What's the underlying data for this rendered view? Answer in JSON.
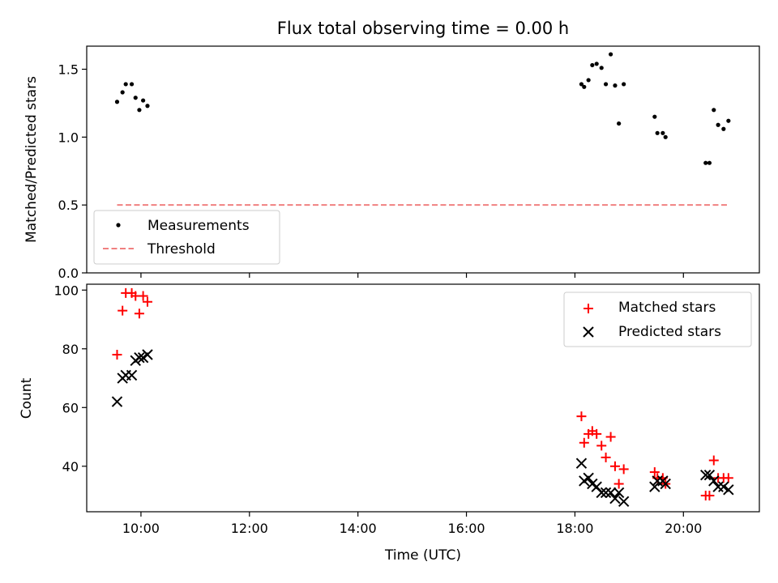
{
  "chart_data": [
    {
      "type": "scatter",
      "title": "Flux total observing time = 0.00 h",
      "xlabel": "",
      "ylabel": "Matched/Predicted stars",
      "ylim": [
        0,
        1.67
      ],
      "yticks": [
        "0.0",
        "0.5",
        "1.0",
        "1.5"
      ],
      "ytick_values": [
        0,
        0.5,
        1.0,
        1.5
      ],
      "xlim": [
        9.0,
        21.4
      ],
      "xticks": [
        10,
        12,
        14,
        16,
        18,
        20
      ],
      "grid": false,
      "legend_position": "lower-left",
      "series": [
        {
          "name": "Measurements",
          "kind": "dot",
          "color": "#000000",
          "points": [
            [
              9.56,
              1.26
            ],
            [
              9.66,
              1.33
            ],
            [
              9.72,
              1.39
            ],
            [
              9.83,
              1.39
            ],
            [
              9.9,
              1.29
            ],
            [
              9.97,
              1.2
            ],
            [
              10.04,
              1.27
            ],
            [
              10.12,
              1.23
            ],
            [
              18.12,
              1.39
            ],
            [
              18.17,
              1.37
            ],
            [
              18.25,
              1.42
            ],
            [
              18.32,
              1.53
            ],
            [
              18.4,
              1.54
            ],
            [
              18.49,
              1.51
            ],
            [
              18.57,
              1.39
            ],
            [
              18.66,
              1.61
            ],
            [
              18.74,
              1.38
            ],
            [
              18.81,
              1.1
            ],
            [
              18.9,
              1.39
            ],
            [
              19.47,
              1.15
            ],
            [
              19.52,
              1.03
            ],
            [
              19.62,
              1.03
            ],
            [
              19.67,
              1.0
            ],
            [
              20.41,
              0.81
            ],
            [
              20.48,
              0.81
            ],
            [
              20.56,
              1.2
            ],
            [
              20.64,
              1.09
            ],
            [
              20.74,
              1.06
            ],
            [
              20.83,
              1.12
            ]
          ]
        },
        {
          "name": "Threshold",
          "kind": "dashed-line",
          "color": "#f08080",
          "points": [
            [
              9.56,
              0.5
            ],
            [
              20.83,
              0.5
            ]
          ]
        }
      ]
    },
    {
      "type": "scatter",
      "title": "",
      "xlabel": "Time (UTC)",
      "ylabel": "Count",
      "ylim": [
        24.5,
        102
      ],
      "yticks": [
        "40",
        "60",
        "80",
        "100"
      ],
      "ytick_values": [
        40,
        60,
        80,
        100
      ],
      "xlim": [
        9.0,
        21.4
      ],
      "xticks": [
        10,
        12,
        14,
        16,
        18,
        20
      ],
      "xtick_labels": [
        "10:00",
        "12:00",
        "14:00",
        "16:00",
        "18:00",
        "20:00"
      ],
      "grid": false,
      "legend_position": "upper-right",
      "series": [
        {
          "name": "Matched stars",
          "kind": "plus",
          "color": "#ff0000",
          "points": [
            [
              9.56,
              78
            ],
            [
              9.66,
              93
            ],
            [
              9.72,
              99
            ],
            [
              9.83,
              99
            ],
            [
              9.9,
              98
            ],
            [
              9.97,
              92
            ],
            [
              10.04,
              98
            ],
            [
              10.12,
              96
            ],
            [
              18.12,
              57
            ],
            [
              18.17,
              48
            ],
            [
              18.25,
              51
            ],
            [
              18.32,
              52
            ],
            [
              18.4,
              51
            ],
            [
              18.49,
              47
            ],
            [
              18.57,
              43
            ],
            [
              18.66,
              50
            ],
            [
              18.74,
              40
            ],
            [
              18.81,
              34
            ],
            [
              18.9,
              39
            ],
            [
              19.47,
              38
            ],
            [
              19.52,
              36
            ],
            [
              19.62,
              36
            ],
            [
              19.67,
              34
            ],
            [
              20.41,
              30
            ],
            [
              20.48,
              30
            ],
            [
              20.56,
              42
            ],
            [
              20.64,
              36
            ],
            [
              20.74,
              36
            ],
            [
              20.83,
              36
            ]
          ]
        },
        {
          "name": "Predicted stars",
          "kind": "x",
          "color": "#000000",
          "points": [
            [
              9.56,
              62
            ],
            [
              9.66,
              70
            ],
            [
              9.72,
              71
            ],
            [
              9.83,
              71
            ],
            [
              9.9,
              76
            ],
            [
              9.97,
              77
            ],
            [
              10.04,
              77
            ],
            [
              10.12,
              78
            ],
            [
              18.12,
              41
            ],
            [
              18.17,
              35
            ],
            [
              18.25,
              36
            ],
            [
              18.32,
              34
            ],
            [
              18.4,
              33
            ],
            [
              18.49,
              31
            ],
            [
              18.57,
              31
            ],
            [
              18.66,
              31
            ],
            [
              18.74,
              29
            ],
            [
              18.81,
              31
            ],
            [
              18.9,
              28
            ],
            [
              19.47,
              33
            ],
            [
              19.52,
              35
            ],
            [
              19.62,
              35
            ],
            [
              19.67,
              34
            ],
            [
              20.41,
              37
            ],
            [
              20.48,
              37
            ],
            [
              20.56,
              35
            ],
            [
              20.64,
              33
            ],
            [
              20.74,
              33
            ],
            [
              20.83,
              32
            ]
          ]
        }
      ]
    }
  ]
}
